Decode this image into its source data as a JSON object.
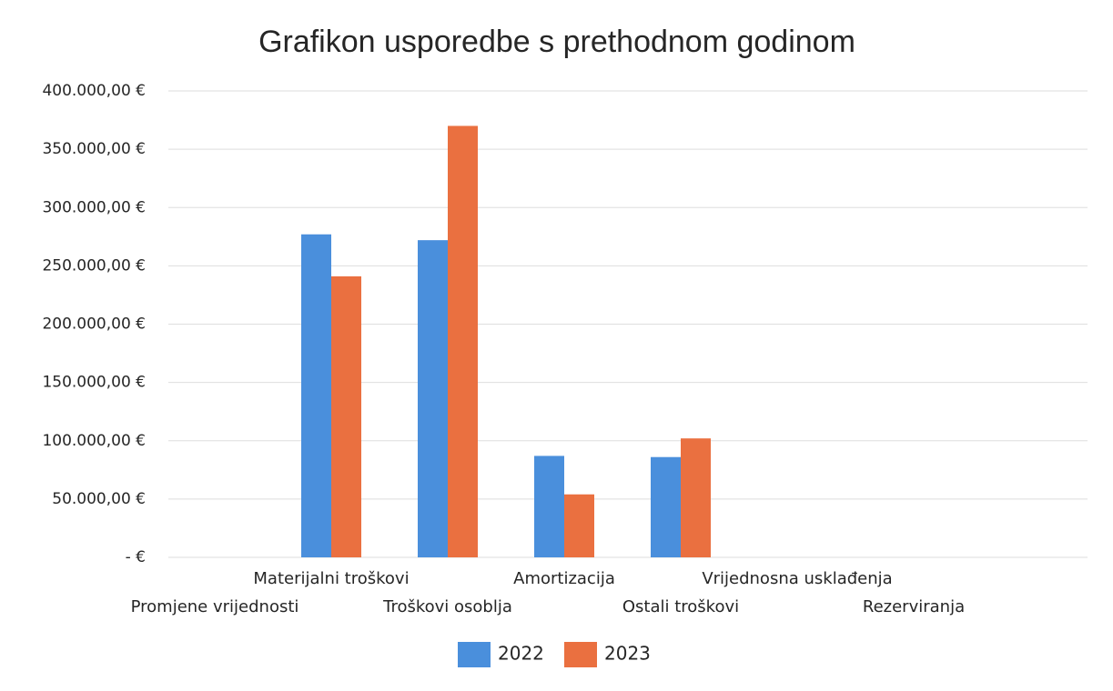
{
  "chart_data": {
    "type": "bar",
    "title": "Grafikon usporedbe s prethodnom godinom",
    "categories": [
      "Promjene vrijednosti",
      "Materijalni troškovi",
      "Troškovi osoblja",
      "Amortizacija",
      "Ostali troškovi",
      "Vrijednosna usklađenja",
      "Rezerviranja"
    ],
    "series": [
      {
        "name": "2022",
        "color": "#4a8fdc",
        "values": [
          0,
          277000,
          272000,
          87000,
          86000,
          0,
          0
        ]
      },
      {
        "name": "2023",
        "color": "#ea7040",
        "values": [
          0,
          241000,
          370000,
          54000,
          102000,
          0,
          0
        ]
      }
    ],
    "ylim": [
      0,
      400000
    ],
    "yticks": [
      {
        "value": 0,
        "label": "-  €"
      },
      {
        "value": 50000,
        "label": "50.000,00 €"
      },
      {
        "value": 100000,
        "label": "100.000,00 €"
      },
      {
        "value": 150000,
        "label": "150.000,00 €"
      },
      {
        "value": 200000,
        "label": "200.000,00 €"
      },
      {
        "value": 250000,
        "label": "250.000,00 €"
      },
      {
        "value": 300000,
        "label": "300.000,00 €"
      },
      {
        "value": 350000,
        "label": "350.000,00 €"
      },
      {
        "value": 400000,
        "label": "400.000,00 €"
      }
    ],
    "grid": true,
    "legend": "bottom"
  }
}
